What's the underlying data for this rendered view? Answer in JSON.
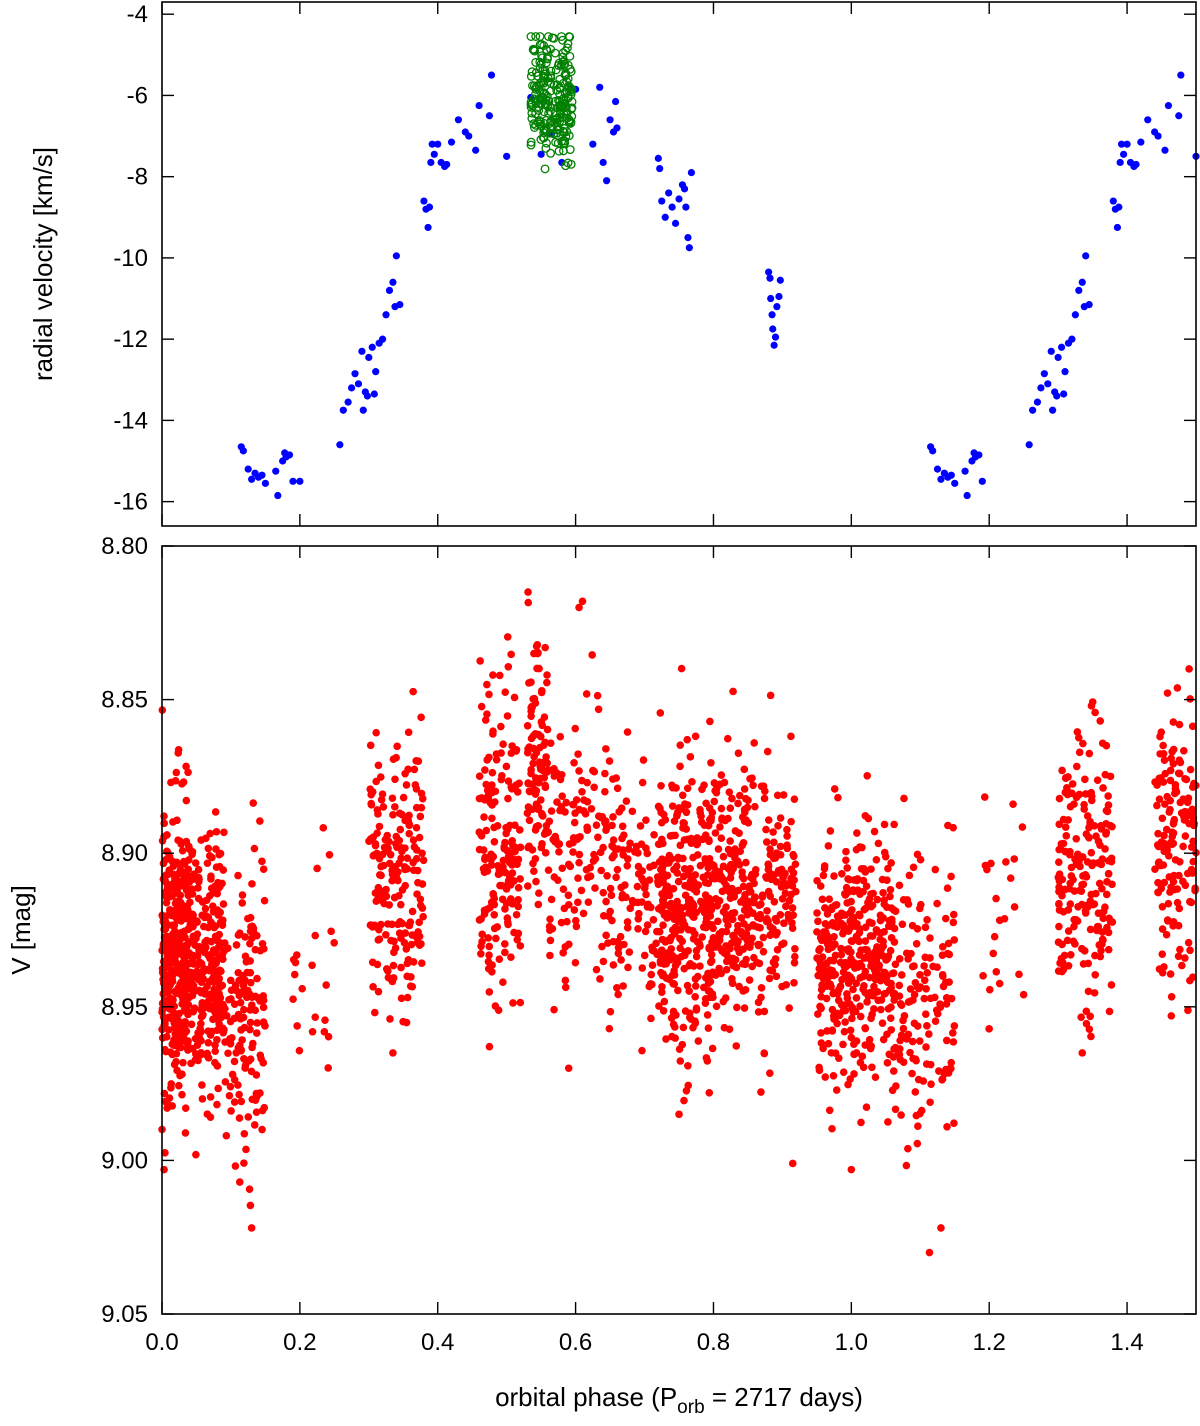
{
  "chart_data": [
    {
      "type": "scatter",
      "panel": "top",
      "title": "",
      "ylabel": "radial velocity [km/s]",
      "xlim": [
        0.0,
        1.5
      ],
      "ylim": [
        -16.6,
        -3.7
      ],
      "yticks": [
        -4,
        -6,
        -8,
        -10,
        -12,
        -14,
        -16
      ],
      "ytick_labels": [
        "-4",
        "-6",
        "-8",
        "-10",
        "-12",
        "-14",
        "-16"
      ],
      "xticks": [
        0.0,
        0.2,
        0.4,
        0.6,
        0.8,
        1.0,
        1.2,
        1.4
      ],
      "grid": false,
      "legend": "none",
      "series": [
        {
          "marker": "filled-circle",
          "color": "#0000ff",
          "points": [
            [
              0.115,
              -14.65
            ],
            [
              0.118,
              -14.75
            ],
            [
              0.125,
              -15.2
            ],
            [
              0.13,
              -15.45
            ],
            [
              0.135,
              -15.3
            ],
            [
              0.14,
              -15.4
            ],
            [
              0.145,
              -15.35
            ],
            [
              0.15,
              -15.55
            ],
            [
              0.165,
              -15.25
            ],
            [
              0.168,
              -15.85
            ],
            [
              0.175,
              -15.0
            ],
            [
              0.178,
              -14.8
            ],
            [
              0.18,
              -14.9
            ],
            [
              0.185,
              -14.85
            ],
            [
              0.19,
              -15.5
            ],
            [
              0.2,
              -15.5
            ],
            [
              0.258,
              -14.6
            ],
            [
              0.263,
              -13.75
            ],
            [
              0.27,
              -13.55
            ],
            [
              0.275,
              -13.2
            ],
            [
              0.28,
              -12.85
            ],
            [
              0.285,
              -13.1
            ],
            [
              0.29,
              -12.3
            ],
            [
              0.292,
              -13.75
            ],
            [
              0.295,
              -13.3
            ],
            [
              0.298,
              -13.4
            ],
            [
              0.3,
              -12.45
            ],
            [
              0.305,
              -12.2
            ],
            [
              0.308,
              -13.35
            ],
            [
              0.31,
              -12.8
            ],
            [
              0.315,
              -12.1
            ],
            [
              0.32,
              -12.0
            ],
            [
              0.325,
              -11.4
            ],
            [
              0.33,
              -10.8
            ],
            [
              0.335,
              -10.6
            ],
            [
              0.338,
              -11.2
            ],
            [
              0.34,
              -9.95
            ],
            [
              0.345,
              -11.15
            ],
            [
              0.38,
              -8.6
            ],
            [
              0.383,
              -8.8
            ],
            [
              0.386,
              -9.25
            ],
            [
              0.388,
              -8.75
            ],
            [
              0.39,
              -7.65
            ],
            [
              0.392,
              -7.2
            ],
            [
              0.395,
              -7.45
            ],
            [
              0.4,
              -7.2
            ],
            [
              0.405,
              -7.65
            ],
            [
              0.41,
              -7.75
            ],
            [
              0.413,
              -7.7
            ],
            [
              0.42,
              -7.15
            ],
            [
              0.43,
              -6.6
            ],
            [
              0.44,
              -6.9
            ],
            [
              0.445,
              -7.0
            ],
            [
              0.455,
              -7.35
            ],
            [
              0.46,
              -6.25
            ],
            [
              0.475,
              -6.5
            ],
            [
              0.478,
              -5.5
            ],
            [
              0.5,
              -7.5
            ],
            [
              0.535,
              -6.05
            ],
            [
              0.55,
              -7.45
            ],
            [
              0.565,
              -6.95
            ],
            [
              0.58,
              -7.65
            ],
            [
              0.593,
              -5.8
            ],
            [
              0.6,
              -5.85
            ],
            [
              0.625,
              -7.2
            ],
            [
              0.635,
              -5.8
            ],
            [
              0.64,
              -7.65
            ],
            [
              0.645,
              -8.1
            ],
            [
              0.65,
              -6.6
            ],
            [
              0.655,
              -6.9
            ],
            [
              0.658,
              -6.15
            ],
            [
              0.66,
              -6.8
            ],
            [
              0.72,
              -7.55
            ],
            [
              0.722,
              -7.8
            ],
            [
              0.725,
              -8.6
            ],
            [
              0.73,
              -9.0
            ],
            [
              0.735,
              -8.4
            ],
            [
              0.74,
              -8.75
            ],
            [
              0.745,
              -9.15
            ],
            [
              0.75,
              -8.55
            ],
            [
              0.755,
              -8.2
            ],
            [
              0.758,
              -8.3
            ],
            [
              0.76,
              -8.75
            ],
            [
              0.763,
              -9.5
            ],
            [
              0.765,
              -9.75
            ],
            [
              0.768,
              -7.9
            ],
            [
              0.88,
              -10.35
            ],
            [
              0.882,
              -10.5
            ],
            [
              0.883,
              -11.0
            ],
            [
              0.885,
              -11.4
            ],
            [
              0.886,
              -11.75
            ],
            [
              0.888,
              -12.15
            ],
            [
              0.89,
              -11.95
            ],
            [
              0.892,
              -11.2
            ],
            [
              0.895,
              -10.95
            ],
            [
              0.897,
              -10.55
            ],
            [
              1.115,
              -14.65
            ],
            [
              1.118,
              -14.75
            ],
            [
              1.125,
              -15.2
            ],
            [
              1.13,
              -15.45
            ],
            [
              1.135,
              -15.3
            ],
            [
              1.14,
              -15.4
            ],
            [
              1.145,
              -15.35
            ],
            [
              1.15,
              -15.55
            ],
            [
              1.165,
              -15.25
            ],
            [
              1.168,
              -15.85
            ],
            [
              1.175,
              -15.0
            ],
            [
              1.178,
              -14.8
            ],
            [
              1.18,
              -14.9
            ],
            [
              1.185,
              -14.85
            ],
            [
              1.19,
              -15.5
            ],
            [
              1.258,
              -14.6
            ],
            [
              1.263,
              -13.75
            ],
            [
              1.27,
              -13.55
            ],
            [
              1.275,
              -13.2
            ],
            [
              1.28,
              -12.85
            ],
            [
              1.285,
              -13.1
            ],
            [
              1.29,
              -12.3
            ],
            [
              1.292,
              -13.75
            ],
            [
              1.295,
              -13.3
            ],
            [
              1.298,
              -13.4
            ],
            [
              1.3,
              -12.45
            ],
            [
              1.305,
              -12.2
            ],
            [
              1.308,
              -13.35
            ],
            [
              1.31,
              -12.8
            ],
            [
              1.315,
              -12.1
            ],
            [
              1.32,
              -12.0
            ],
            [
              1.325,
              -11.4
            ],
            [
              1.33,
              -10.8
            ],
            [
              1.335,
              -10.6
            ],
            [
              1.338,
              -11.2
            ],
            [
              1.34,
              -9.95
            ],
            [
              1.345,
              -11.15
            ],
            [
              1.38,
              -8.6
            ],
            [
              1.383,
              -8.8
            ],
            [
              1.386,
              -9.25
            ],
            [
              1.388,
              -8.75
            ],
            [
              1.39,
              -7.65
            ],
            [
              1.392,
              -7.2
            ],
            [
              1.395,
              -7.45
            ],
            [
              1.4,
              -7.2
            ],
            [
              1.405,
              -7.65
            ],
            [
              1.41,
              -7.75
            ],
            [
              1.413,
              -7.7
            ],
            [
              1.42,
              -7.15
            ],
            [
              1.43,
              -6.6
            ],
            [
              1.44,
              -6.9
            ],
            [
              1.445,
              -7.0
            ],
            [
              1.455,
              -7.35
            ],
            [
              1.46,
              -6.25
            ],
            [
              1.475,
              -6.5
            ],
            [
              1.478,
              -5.5
            ],
            [
              1.5,
              -7.5
            ]
          ]
        },
        {
          "marker": "open-circle",
          "color": "#008000",
          "phase_range": [
            0.535,
            0.595
          ],
          "v_range": [
            -8.6,
            -4.55
          ],
          "v_center": -6.0,
          "count": 230
        }
      ]
    },
    {
      "type": "scatter",
      "panel": "bottom",
      "title": "",
      "xlabel_main": "orbital phase (P",
      "xlabel_sub": "orb",
      "xlabel_tail": " = 2717 days)",
      "ylabel": "V [mag]",
      "xlim": [
        0.0,
        1.5
      ],
      "ylim": [
        8.8,
        9.05
      ],
      "y_inverted": true,
      "yticks": [
        8.8,
        8.85,
        8.9,
        8.95,
        9.0,
        9.05
      ],
      "ytick_labels": [
        "8.80",
        "8.85",
        "8.90",
        "8.95",
        "9.00",
        "9.05"
      ],
      "xticks": [
        0.0,
        0.2,
        0.4,
        0.6,
        0.8,
        1.0,
        1.2,
        1.4
      ],
      "xtick_labels": [
        "0.0",
        "0.2",
        "0.4",
        "0.6",
        "0.8",
        "1.0",
        "1.2",
        "1.4"
      ],
      "grid": false,
      "legend": "none",
      "series": [
        {
          "marker": "filled-circle",
          "color": "#ff0000",
          "clusters": [
            [
              0.0,
              0.04,
              8.93,
              0.022,
              380
            ],
            [
              0.04,
              0.09,
              8.935,
              0.02,
              260
            ],
            [
              0.09,
              0.15,
              8.955,
              0.025,
              140
            ],
            [
              0.19,
              0.25,
              8.925,
              0.025,
              22
            ],
            [
              0.3,
              0.38,
              8.905,
              0.022,
              200
            ],
            [
              0.46,
              0.52,
              8.895,
              0.025,
              170
            ],
            [
              0.53,
              0.56,
              8.875,
              0.02,
              100
            ],
            [
              0.56,
              0.66,
              8.9,
              0.022,
              150
            ],
            [
              0.66,
              0.72,
              8.91,
              0.02,
              90
            ],
            [
              0.72,
              0.8,
              8.915,
              0.025,
              340
            ],
            [
              0.8,
              0.92,
              8.915,
              0.02,
              330
            ],
            [
              0.95,
              1.06,
              8.935,
              0.02,
              380
            ],
            [
              1.06,
              1.15,
              8.945,
              0.025,
              150
            ],
            [
              1.19,
              1.25,
              8.925,
              0.025,
              22
            ],
            [
              1.3,
              1.38,
              8.905,
              0.022,
              200
            ],
            [
              1.44,
              1.5,
              8.895,
              0.025,
              150
            ]
          ],
          "extremes": [
            [
              0.003,
              9.003
            ],
            [
              0.13,
              9.022
            ],
            [
              0.605,
              8.82
            ],
            [
              0.61,
              8.818
            ],
            [
              0.545,
              8.835
            ],
            [
              0.48,
              8.842
            ],
            [
              0.75,
              8.985
            ],
            [
              0.915,
              9.001
            ],
            [
              1.0,
              9.003
            ],
            [
              1.13,
              9.022
            ],
            [
              0.335,
              8.965
            ],
            [
              1.335,
              8.965
            ],
            [
              0.475,
              8.963
            ],
            [
              1.49,
              8.84
            ],
            [
              0.59,
              8.97
            ]
          ]
        }
      ]
    }
  ]
}
